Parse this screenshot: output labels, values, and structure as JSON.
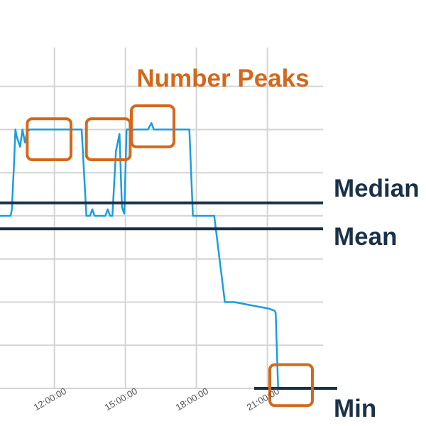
{
  "chart_data": {
    "type": "line",
    "title": "",
    "annotation_title": "Number Peaks",
    "xlabel": "",
    "ylabel": "",
    "x_unit": "hours",
    "xlim": [
      9.7,
      22.75
    ],
    "ylim": [
      0.0,
      7.9
    ],
    "grid": true,
    "x_ticks": [
      {
        "x": 12,
        "label": "12:00:00"
      },
      {
        "x": 15,
        "label": "15:00:00"
      },
      {
        "x": 18,
        "label": "18:00:00"
      },
      {
        "x": 21,
        "label": "21:00:00"
      }
    ],
    "y_gridlines": [
      0,
      1,
      2,
      3,
      4,
      5,
      6,
      7
    ],
    "series": [
      {
        "name": "",
        "color": "#1a9de0",
        "x": [
          9.7,
          10.15,
          10.2,
          10.3,
          10.35,
          10.4,
          10.55,
          10.65,
          10.75,
          10.85,
          10.95,
          11.1,
          11.3,
          12.5,
          12.7,
          13.0,
          13.05,
          13.15,
          13.35,
          13.5,
          13.6,
          13.7,
          14.15,
          14.25,
          14.35,
          14.45,
          14.6,
          14.75,
          14.85,
          14.95,
          15.05,
          15.15,
          15.25,
          15.35,
          15.45,
          15.6,
          15.75,
          15.85,
          15.95,
          16.1,
          16.2,
          16.4,
          16.6,
          16.8,
          17.0,
          17.2,
          17.4,
          17.5,
          17.6,
          17.7,
          17.85,
          18.3,
          18.5,
          18.75,
          19.2,
          19.35,
          19.45,
          19.5,
          19.6,
          21.05,
          21.3,
          21.35,
          21.45,
          21.6,
          21.7,
          22.15
        ],
        "y": [
          4.0,
          4.0,
          4.15,
          5.3,
          6.0,
          5.85,
          5.6,
          6.0,
          5.7,
          5.95,
          6.0,
          6.0,
          6.0,
          6.0,
          6.0,
          6.0,
          6.0,
          6.0,
          4.0,
          4.0,
          4.15,
          4.0,
          4.0,
          4.15,
          4.0,
          4.0,
          5.5,
          5.9,
          4.2,
          4.05,
          6.0,
          6.0,
          5.95,
          6.0,
          6.0,
          6.0,
          6.0,
          6.0,
          6.0,
          6.15,
          6.0,
          6.0,
          6.0,
          6.0,
          6.0,
          6.0,
          6.0,
          6.0,
          6.0,
          6.0,
          4.0,
          4.0,
          4.0,
          4.0,
          2.0,
          2.0,
          2.0,
          2.0,
          2.0,
          1.85,
          1.8,
          1.75,
          0.0,
          0.0,
          0.0,
          0.0
        ]
      }
    ],
    "reference_lines": [
      {
        "label": "Median",
        "y": 4.3,
        "color": "#1b3147"
      },
      {
        "label": "Mean",
        "y": 3.7,
        "color": "#1b3147"
      },
      {
        "label": "Min",
        "y": 0.0,
        "color": "#1b3147"
      }
    ],
    "annotations": {
      "color": "#d3681c",
      "peak_boxes": [
        {
          "x_start": 10.85,
          "x_end": 12.7,
          "y_low": 5.3,
          "y_high": 6.25
        },
        {
          "x_start": 13.35,
          "x_end": 15.2,
          "y_low": 5.3,
          "y_high": 6.25
        },
        {
          "x_start": 15.25,
          "x_end": 17.05,
          "y_low": 5.6,
          "y_high": 6.55
        },
        {
          "x_start": 21.1,
          "x_end": 22.9,
          "y_low": -0.4,
          "y_high": 0.55
        }
      ]
    }
  }
}
